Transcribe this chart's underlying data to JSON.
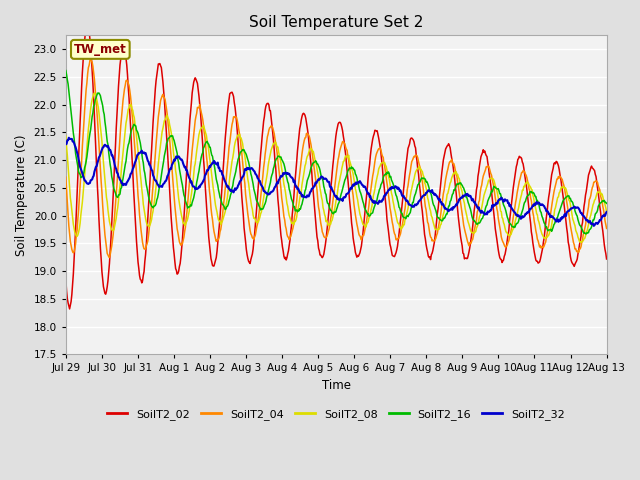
{
  "title": "Soil Temperature Set 2",
  "ylabel": "Soil Temperature (C)",
  "xlabel": "Time",
  "annotation_text": "TW_met",
  "annotation_color": "#8B0000",
  "annotation_bg": "#FFFFCC",
  "annotation_border": "#8B8B00",
  "series": [
    "SoilT2_02",
    "SoilT2_04",
    "SoilT2_08",
    "SoilT2_16",
    "SoilT2_32"
  ],
  "colors": [
    "#DD0000",
    "#FF8800",
    "#DDDD00",
    "#00BB00",
    "#0000CC"
  ],
  "ylim": [
    17.5,
    23.25
  ],
  "yticks": [
    17.5,
    18.0,
    18.5,
    19.0,
    19.5,
    20.0,
    20.5,
    21.0,
    21.5,
    22.0,
    22.5,
    23.0
  ],
  "xtick_labels": [
    "Jul 29",
    "Jul 30",
    "Jul 31",
    "Aug 1",
    "Aug 2",
    "Aug 3",
    "Aug 4",
    "Aug 5",
    "Aug 6",
    "Aug 7",
    "Aug 8",
    "Aug 9",
    "Aug 10",
    "Aug 11",
    "Aug 12",
    "Aug 13"
  ],
  "bg_color": "#E0E0E0",
  "plot_bg": "#F2F2F2",
  "linewidth_thin": 1.1,
  "linewidth_blue": 1.5,
  "figsize": [
    6.4,
    4.8
  ],
  "dpi": 100
}
